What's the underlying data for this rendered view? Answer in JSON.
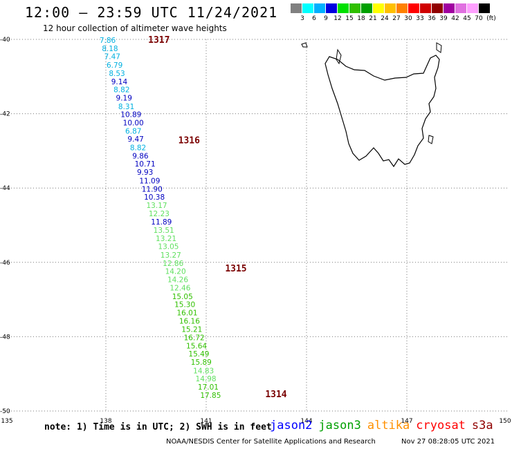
{
  "header": {
    "title": "12:00 – 23:59 UTC 11/24/2021",
    "subtitle": "12 hour collection of altimeter wave heights"
  },
  "legend": {
    "unit": "(ft)",
    "colors": [
      "#808080",
      "#00ffff",
      "#00b0ff",
      "#0000e0",
      "#00e000",
      "#30c000",
      "#00a000",
      "#ffff00",
      "#ffc000",
      "#ff8000",
      "#ff0000",
      "#d00000",
      "#900000",
      "#a000a0",
      "#e070e0",
      "#ffa0ff",
      "#000000"
    ],
    "ticks": [
      "3",
      "6",
      "9",
      "12",
      "15",
      "18",
      "21",
      "24",
      "27",
      "30",
      "33",
      "36",
      "39",
      "42",
      "45",
      "70"
    ]
  },
  "axes": {
    "lat_labels": [
      "-40",
      "-42",
      "-44",
      "-46",
      "-48",
      "-50"
    ],
    "lon_labels": [
      "135",
      "138",
      "141",
      "144",
      "147",
      "150"
    ]
  },
  "passes": [
    {
      "label": "1317",
      "lat": -40.02,
      "lon": 139.1
    },
    {
      "label": "1316",
      "lat": -42.72,
      "lon": 140.0
    },
    {
      "label": "1315",
      "lat": -46.17,
      "lon": 141.4
    },
    {
      "label": "1314",
      "lat": -49.55,
      "lon": 142.6
    }
  ],
  "observations": [
    {
      "value": "7.86",
      "lat": -40.02,
      "lon": 138.1,
      "color": "#00b0e0"
    },
    {
      "value": "8.18",
      "lat": -40.24,
      "lon": 138.17,
      "color": "#00b0e0"
    },
    {
      "value": "7.47",
      "lat": -40.46,
      "lon": 138.24,
      "color": "#00b0e0"
    },
    {
      "value": "6.79",
      "lat": -40.69,
      "lon": 138.31,
      "color": "#00b0e0"
    },
    {
      "value": "8.53",
      "lat": -40.91,
      "lon": 138.38,
      "color": "#00b0e0"
    },
    {
      "value": "9.14",
      "lat": -41.13,
      "lon": 138.45,
      "color": "#0000c0"
    },
    {
      "value": "8.82",
      "lat": -41.35,
      "lon": 138.52,
      "color": "#00b0e0"
    },
    {
      "value": "9.19",
      "lat": -41.57,
      "lon": 138.59,
      "color": "#0000c0"
    },
    {
      "value": "8.31",
      "lat": -41.8,
      "lon": 138.66,
      "color": "#00b0e0"
    },
    {
      "value": "10.89",
      "lat": -42.02,
      "lon": 138.73,
      "color": "#0000c0"
    },
    {
      "value": "10.00",
      "lat": -42.24,
      "lon": 138.8,
      "color": "#0000c0"
    },
    {
      "value": "6.87",
      "lat": -42.46,
      "lon": 138.87,
      "color": "#00b0e0"
    },
    {
      "value": "9.47",
      "lat": -42.68,
      "lon": 138.94,
      "color": "#0000c0"
    },
    {
      "value": "8.82",
      "lat": -42.91,
      "lon": 139.01,
      "color": "#00b0e0"
    },
    {
      "value": "9.86",
      "lat": -43.13,
      "lon": 139.08,
      "color": "#0000c0"
    },
    {
      "value": "10.71",
      "lat": -43.35,
      "lon": 139.15,
      "color": "#0000c0"
    },
    {
      "value": "9.93",
      "lat": -43.57,
      "lon": 139.22,
      "color": "#0000c0"
    },
    {
      "value": "11.09",
      "lat": -43.8,
      "lon": 139.29,
      "color": "#0000c0"
    },
    {
      "value": "11.90",
      "lat": -44.02,
      "lon": 139.36,
      "color": "#0000c0"
    },
    {
      "value": "10.38",
      "lat": -44.24,
      "lon": 139.43,
      "color": "#0000c0"
    },
    {
      "value": "13.17",
      "lat": -44.46,
      "lon": 139.5,
      "color": "#60e060"
    },
    {
      "value": "12.23",
      "lat": -44.68,
      "lon": 139.57,
      "color": "#60e060"
    },
    {
      "value": "11.89",
      "lat": -44.91,
      "lon": 139.64,
      "color": "#0000c0"
    },
    {
      "value": "13.51",
      "lat": -45.13,
      "lon": 139.71,
      "color": "#60e060"
    },
    {
      "value": "13.21",
      "lat": -45.35,
      "lon": 139.78,
      "color": "#60e060"
    },
    {
      "value": "13.05",
      "lat": -45.57,
      "lon": 139.85,
      "color": "#60e060"
    },
    {
      "value": "13.27",
      "lat": -45.8,
      "lon": 139.92,
      "color": "#60e060"
    },
    {
      "value": "12.86",
      "lat": -46.02,
      "lon": 139.99,
      "color": "#60e060"
    },
    {
      "value": "14.20",
      "lat": -46.24,
      "lon": 140.06,
      "color": "#60e060"
    },
    {
      "value": "14.26",
      "lat": -46.46,
      "lon": 140.13,
      "color": "#60e060"
    },
    {
      "value": "12.46",
      "lat": -46.68,
      "lon": 140.2,
      "color": "#60e060"
    },
    {
      "value": "15.05",
      "lat": -46.91,
      "lon": 140.27,
      "color": "#30c000"
    },
    {
      "value": "15.30",
      "lat": -47.13,
      "lon": 140.34,
      "color": "#30c000"
    },
    {
      "value": "16.01",
      "lat": -47.35,
      "lon": 140.41,
      "color": "#30c000"
    },
    {
      "value": "16.16",
      "lat": -47.57,
      "lon": 140.48,
      "color": "#30c000"
    },
    {
      "value": "15.21",
      "lat": -47.8,
      "lon": 140.55,
      "color": "#30c000"
    },
    {
      "value": "16.72",
      "lat": -48.02,
      "lon": 140.62,
      "color": "#30c000"
    },
    {
      "value": "15.64",
      "lat": -48.24,
      "lon": 140.69,
      "color": "#30c000"
    },
    {
      "value": "15.49",
      "lat": -48.46,
      "lon": 140.76,
      "color": "#30c000"
    },
    {
      "value": "15.89",
      "lat": -48.68,
      "lon": 140.83,
      "color": "#30c000"
    },
    {
      "value": "14.83",
      "lat": -48.91,
      "lon": 140.9,
      "color": "#60e060"
    },
    {
      "value": "14.98",
      "lat": -49.13,
      "lon": 140.97,
      "color": "#60e060"
    },
    {
      "value": "17.01",
      "lat": -49.35,
      "lon": 141.04,
      "color": "#30c000"
    },
    {
      "value": "17.85",
      "lat": -49.57,
      "lon": 141.11,
      "color": "#30c000"
    }
  ],
  "note": "note: 1) Time is in UTC; 2) SWH is in feet",
  "satellites": [
    {
      "name": "jason2",
      "color": "#0000ff"
    },
    {
      "name": "jason3",
      "color": "#00a000"
    },
    {
      "name": "altika",
      "color": "#ff9000"
    },
    {
      "name": "cryosat",
      "color": "#ff0000"
    },
    {
      "name": "s3a",
      "color": "#900000"
    }
  ],
  "footer": {
    "credit": "NOAA/NESDIS Center for Satellite Applications and Research",
    "timestamp": "Nov 27 08:28:05 UTC 2021"
  }
}
